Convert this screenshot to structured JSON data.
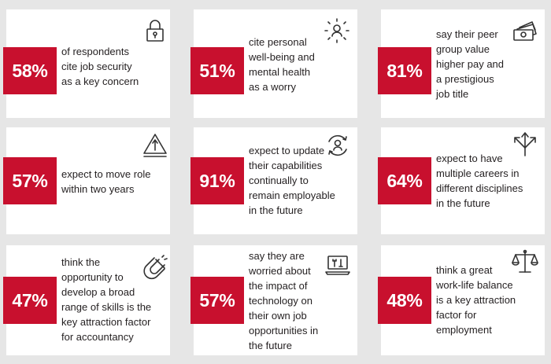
{
  "cards": [
    {
      "percent": "58%",
      "lines": [
        "of respondents",
        "cite job security",
        "as a key concern"
      ],
      "icon": "padlock-icon"
    },
    {
      "percent": "51%",
      "lines": [
        "cite personal",
        "well-being and",
        "mental health",
        "as a worry"
      ],
      "icon": "person-stress-icon"
    },
    {
      "percent": "81%",
      "lines": [
        "say their peer",
        "group value",
        "higher pay and",
        "a prestigious",
        "job title"
      ],
      "icon": "money-stack-icon"
    },
    {
      "percent": "57%",
      "lines": [
        "expect to move role",
        "within two years"
      ],
      "icon": "warning-arrow-icon"
    },
    {
      "percent": "91%",
      "lines": [
        "expect to update",
        "their capabilities",
        "continually to",
        "remain employable",
        "in the future"
      ],
      "icon": "person-refresh-icon"
    },
    {
      "percent": "64%",
      "lines": [
        "expect to have",
        "multiple careers in",
        "different disciplines",
        "in the future"
      ],
      "icon": "split-arrows-icon"
    },
    {
      "percent": "47%",
      "lines": [
        "think the",
        "opportunity to",
        "develop a broad",
        "range of skills is the",
        "key attraction factor",
        "for accountancy"
      ],
      "icon": "magnet-icon"
    },
    {
      "percent": "57%",
      "lines": [
        "say they are",
        "worried about",
        "the impact of",
        "technology on",
        "their own job",
        "opportunities in",
        "the future"
      ],
      "icon": "laptop-tools-icon"
    },
    {
      "percent": "48%",
      "lines": [
        "think a great",
        "work-life balance",
        "is a key attraction",
        "factor for",
        "employment"
      ],
      "icon": "scales-icon"
    }
  ]
}
